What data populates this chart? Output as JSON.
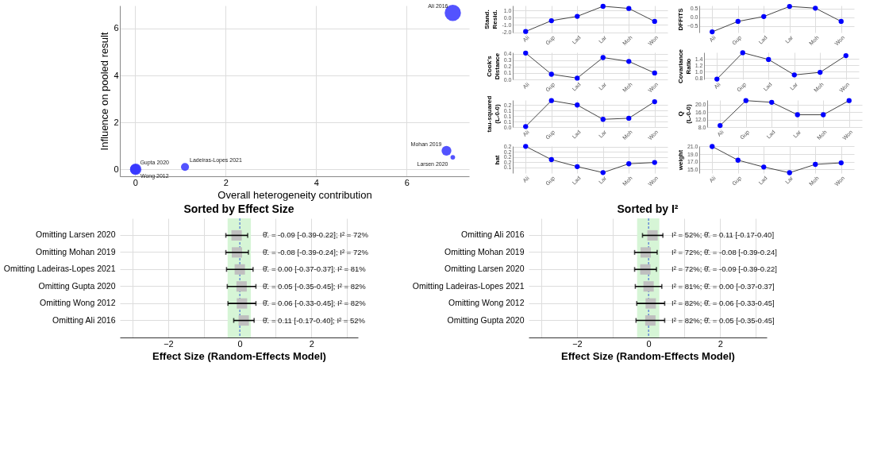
{
  "chart_data": [
    {
      "type": "bubble",
      "xlabel": "Overall heterogeneity contribution",
      "ylabel": "Influence on pooled result",
      "xlim": [
        -0.34,
        7.38
      ],
      "ylim": [
        -0.3,
        6.98
      ],
      "xticks": [
        0,
        2,
        4,
        6
      ],
      "yticks": [
        0,
        2,
        4,
        6
      ],
      "grid": true,
      "series": [
        {
          "color": "#3535ff",
          "x": [
            7.02,
            0.0,
            1.1,
            7.02,
            6.88,
            0.01
          ],
          "values": [
            6.67,
            0.0,
            0.1,
            0.51,
            0.79,
            0.0
          ],
          "sizes": [
            1,
            0.4,
            0.24,
            0.08,
            0.36,
            0.49
          ]
        }
      ],
      "annotations": [
        {
          "text": "Ali 2016",
          "x": 7.02,
          "y": 6.67
        },
        {
          "text": "Gupta 2020",
          "x": 0.0,
          "y": 0.0
        },
        {
          "text": "Ladeiras-Lopes 2021",
          "x": 1.1,
          "y": 0.1
        },
        {
          "text": "Larsen 2020",
          "x": 7.02,
          "y": 0.51
        },
        {
          "text": "Mohan 2019",
          "x": 6.88,
          "y": 0.79
        },
        {
          "text": "Wong 2012",
          "x": 0.01,
          "y": 0.0
        }
      ]
    },
    {
      "type": "line",
      "ylabel": "Stand. Resid.",
      "categories": [
        "Ali",
        "Gup",
        "Lad",
        "Lar",
        "Moh",
        "Won"
      ],
      "marker": "circle",
      "grid": true,
      "ylim": [
        -2.05,
        1.7
      ],
      "yticks": [
        {
          "value": -2,
          "label": "-2.0"
        },
        {
          "value": -1,
          "label": "-1.0"
        },
        {
          "value": 0,
          "label": "0.0"
        },
        {
          "value": 1,
          "label": "1.0"
        }
      ],
      "series": [
        {
          "color": "#0000ff",
          "values": [
            -1.9,
            -0.4,
            0.2,
            1.6,
            1.3,
            -0.5
          ]
        }
      ]
    },
    {
      "type": "line",
      "ylabel": "DFFITS",
      "categories": [
        "Ali",
        "Gup",
        "Lad",
        "Lar",
        "Moh",
        "Won"
      ],
      "marker": "circle",
      "grid": true,
      "ylim": [
        -0.87,
        0.68
      ],
      "yticks": [
        -0.5,
        {
          "value": 0,
          "label": "0.0"
        },
        0.5
      ],
      "series": [
        {
          "color": "#0000ff",
          "values": [
            -0.83,
            -0.23,
            0.05,
            0.63,
            0.53,
            -0.23
          ]
        }
      ]
    },
    {
      "type": "line",
      "ylabel": "Cook's Distance",
      "categories": [
        "Ali",
        "Gup",
        "Lad",
        "Lar",
        "Moh",
        "Won"
      ],
      "marker": "circle",
      "grid": true,
      "ylim": [
        0,
        0.42
      ],
      "yticks": [
        {
          "value": 0,
          "label": "0.0"
        },
        0.1,
        0.2,
        0.3,
        0.4
      ],
      "series": [
        {
          "color": "#0000ff",
          "values": [
            0.41,
            0.08,
            0.02,
            0.34,
            0.28,
            0.1
          ]
        }
      ]
    },
    {
      "type": "line",
      "ylabel": "Covariance Ratio",
      "categories": [
        "Ali",
        "Gup",
        "Lad",
        "Lar",
        "Moh",
        "Won"
      ],
      "marker": "circle",
      "grid": true,
      "ylim": [
        0.76,
        1.6
      ],
      "yticks": [
        0.8,
        {
          "value": 1,
          "label": "1.0"
        },
        1.2,
        1.4
      ],
      "series": [
        {
          "color": "#0000ff",
          "values": [
            0.77,
            1.59,
            1.38,
            0.9,
            0.98,
            1.5
          ]
        }
      ]
    },
    {
      "type": "line",
      "ylabel": "tau-squared (L-0-0)",
      "categories": [
        "Ali",
        "Gup",
        "Lad",
        "Lar",
        "Moh",
        "Won"
      ],
      "marker": "circle",
      "grid": true,
      "ylim": [
        0,
        0.245
      ],
      "yticks": [
        {
          "value": 0,
          "label": "0.0"
        },
        {
          "value": 0.05,
          "label": "0.1"
        },
        {
          "value": 0.1,
          "label": "0.1"
        },
        {
          "value": 0.15,
          "label": "0.1"
        },
        {
          "value": 0.2,
          "label": "0.2"
        }
      ],
      "series": [
        {
          "color": "#0000ff",
          "values": [
            0.005,
            0.24,
            0.2,
            0.07,
            0.08,
            0.23
          ]
        }
      ]
    },
    {
      "type": "line",
      "ylabel": "Q (L-0-0)",
      "categories": [
        "Ali",
        "Gup",
        "Lad",
        "Lar",
        "Moh",
        "Won"
      ],
      "marker": "circle",
      "grid": true,
      "ylim": [
        8,
        22.5
      ],
      "yticks": [
        {
          "value": 8,
          "label": "8.0"
        },
        {
          "value": 12,
          "label": "12.0"
        },
        {
          "value": 16,
          "label": "16.0"
        },
        {
          "value": 20,
          "label": "20.0"
        }
      ],
      "series": [
        {
          "color": "#0000ff",
          "values": [
            8.8,
            22.2,
            21.3,
            14.6,
            14.6,
            22.2
          ]
        }
      ]
    },
    {
      "type": "line",
      "ylabel": "hat",
      "categories": [
        "Ali",
        "Gup",
        "Lad",
        "Lar",
        "Moh",
        "Won"
      ],
      "marker": "circle",
      "grid": true,
      "ylim": [
        0.118,
        0.222
      ],
      "yticks": [
        {
          "value": 0.14,
          "label": "0.1"
        },
        {
          "value": 0.16,
          "label": "0.2"
        },
        {
          "value": 0.18,
          "label": "0.2"
        },
        {
          "value": 0.2,
          "label": "0.2"
        },
        {
          "value": 0.22,
          "label": "0.2"
        }
      ],
      "series": [
        {
          "color": "#0000ff",
          "values": [
            0.221,
            0.17,
            0.143,
            0.12,
            0.154,
            0.159
          ]
        }
      ]
    },
    {
      "type": "line",
      "ylabel": "weight",
      "categories": [
        "Ali",
        "Gup",
        "Lad",
        "Lar",
        "Moh",
        "Won"
      ],
      "marker": "circle",
      "grid": true,
      "ylim": [
        14,
        21.1
      ],
      "yticks": [
        {
          "value": 15,
          "label": "15.0"
        },
        {
          "value": 17,
          "label": "17.0"
        },
        {
          "value": 19,
          "label": "19.0"
        },
        {
          "value": 21,
          "label": "21.0"
        }
      ],
      "series": [
        {
          "color": "#0000ff",
          "values": [
            21.0,
            17.4,
            15.6,
            14.1,
            16.3,
            16.7
          ]
        }
      ]
    },
    {
      "type": "scatter",
      "orientation": "horizontal",
      "title": "Sorted by Effect Size",
      "xlabel": "Effect Size (Random-Effects Model)",
      "marker": "square",
      "grid": true,
      "xlim": [
        -3.35,
        3.3
      ],
      "xticks": [
        {
          "value": -3,
          "label": null
        },
        -2,
        {
          "value": -1,
          "label": null
        },
        0,
        {
          "value": 1,
          "label": null
        },
        2,
        {
          "value": 3,
          "label": null
        }
      ],
      "categories": [
        "Omitting Larsen 2020",
        "Omitting Mohan 2019",
        "Omitting Ladeiras-Lopes 2021",
        "Omitting Gupta 2020",
        "Omitting Wong 2012",
        "Omitting Ali 2016"
      ],
      "colors": [
        "#bfbfbf",
        "#bfbfbf",
        "#bfbfbf",
        "#bfbfbf",
        "#bfbfbf",
        "#bfbfbf"
      ],
      "values": [
        -0.09,
        -0.08,
        0.0,
        0.05,
        0.06,
        0.11
      ],
      "errors": [
        [
          -0.39,
          0.22
        ],
        [
          -0.39,
          0.24
        ],
        [
          -0.37,
          0.37
        ],
        [
          -0.35,
          0.45
        ],
        [
          -0.33,
          0.45
        ],
        [
          -0.17,
          0.4
        ]
      ],
      "value_labels": [
        "θ̂₋ = -0.09 [-0.39-0.22]; I² = 72%",
        "θ̂₋ = -0.08 [-0.39-0.24]; I² = 72%",
        "θ̂₋ = 0.00 [-0.37-0.37]; I² = 81%",
        "θ̂₋ = 0.05 [-0.35-0.45]; I² = 82%",
        "θ̂₋ = 0.06 [-0.33-0.45]; I² = 82%",
        "θ̂₋ = 0.11 [-0.17-0.40]; I² = 52%"
      ],
      "bands": [
        {
          "axis": "x",
          "from": -0.34,
          "to": 0.31,
          "color": "#d6f5d6"
        }
      ],
      "ref_lines": [
        {
          "axis": "x",
          "value": 0,
          "color": "#2f55d4",
          "line_style": "dashed"
        }
      ]
    },
    {
      "type": "scatter",
      "orientation": "horizontal",
      "title": "Sorted by I²",
      "xlabel": "Effect Size (Random-Effects Model)",
      "marker": "square",
      "grid": true,
      "xlim": [
        -3.35,
        3.3
      ],
      "xticks": [
        {
          "value": -3,
          "label": null
        },
        -2,
        {
          "value": -1,
          "label": null
        },
        0,
        {
          "value": 1,
          "label": null
        },
        2,
        {
          "value": 3,
          "label": null
        }
      ],
      "categories": [
        "Omitting Ali 2016",
        "Omitting Mohan 2019",
        "Omitting Larsen 2020",
        "Omitting Ladeiras-Lopes 2021",
        "Omitting Wong 2012",
        "Omitting Gupta 2020"
      ],
      "colors": [
        "#bfbfbf",
        "#bfbfbf",
        "#bfbfbf",
        "#bfbfbf",
        "#bfbfbf",
        "#bfbfbf"
      ],
      "values": [
        0.11,
        -0.08,
        -0.09,
        0.0,
        0.06,
        0.05
      ],
      "errors": [
        [
          -0.17,
          0.4
        ],
        [
          -0.39,
          0.24
        ],
        [
          -0.39,
          0.22
        ],
        [
          -0.37,
          0.37
        ],
        [
          -0.33,
          0.45
        ],
        [
          -0.35,
          0.45
        ]
      ],
      "value_labels": [
        "I² = 52%; θ̂₋ = 0.11 [-0.17-0.40]",
        "I² = 72%; θ̂₋ = -0.08 [-0.39-0.24]",
        "I² = 72%; θ̂₋ = -0.09 [-0.39-0.22]",
        "I² = 81%; θ̂₋ = 0.00 [-0.37-0.37]",
        "I² = 82%; θ̂₋ = 0.06 [-0.33-0.45]",
        "I² = 82%; θ̂₋ = 0.05 [-0.35-0.45]"
      ],
      "bands": [
        {
          "axis": "x",
          "from": -0.32,
          "to": 0.3,
          "color": "#d6f5d6"
        }
      ],
      "ref_lines": [
        {
          "axis": "x",
          "value": 0,
          "color": "#2f55d4",
          "line_style": "dashed"
        }
      ]
    }
  ]
}
